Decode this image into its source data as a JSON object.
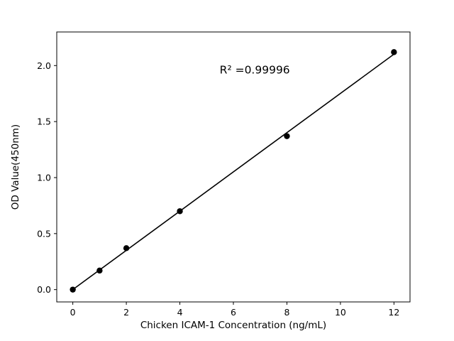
{
  "chart_data": {
    "type": "scatter",
    "title": "",
    "xlabel": "Chicken ICAM-1 Concentration (ng/mL)",
    "ylabel": "OD Value(450nm)",
    "x": [
      0,
      1,
      2,
      4,
      8,
      12
    ],
    "y": [
      0.0,
      0.17,
      0.37,
      0.7,
      1.37,
      2.12
    ],
    "fit_line": true,
    "annotation": {
      "text": "R² =0.99996",
      "x": 6.8,
      "y": 1.93
    },
    "xlim": [
      -0.6,
      12.6
    ],
    "ylim": [
      -0.11,
      2.3
    ],
    "xticks": [
      0,
      2,
      4,
      6,
      8,
      10,
      12
    ],
    "xtick_labels": [
      "0",
      "2",
      "4",
      "6",
      "8",
      "10",
      "12"
    ],
    "yticks": [
      0.0,
      0.5,
      1.0,
      1.5,
      2.0
    ],
    "ytick_labels": [
      "0.0",
      "0.5",
      "1.0",
      "1.5",
      "2.0"
    ],
    "grid": false,
    "legend": "none",
    "marker_color": "#000000",
    "line_color": "#000000",
    "frame_color": "#000000",
    "background": "#ffffff"
  }
}
